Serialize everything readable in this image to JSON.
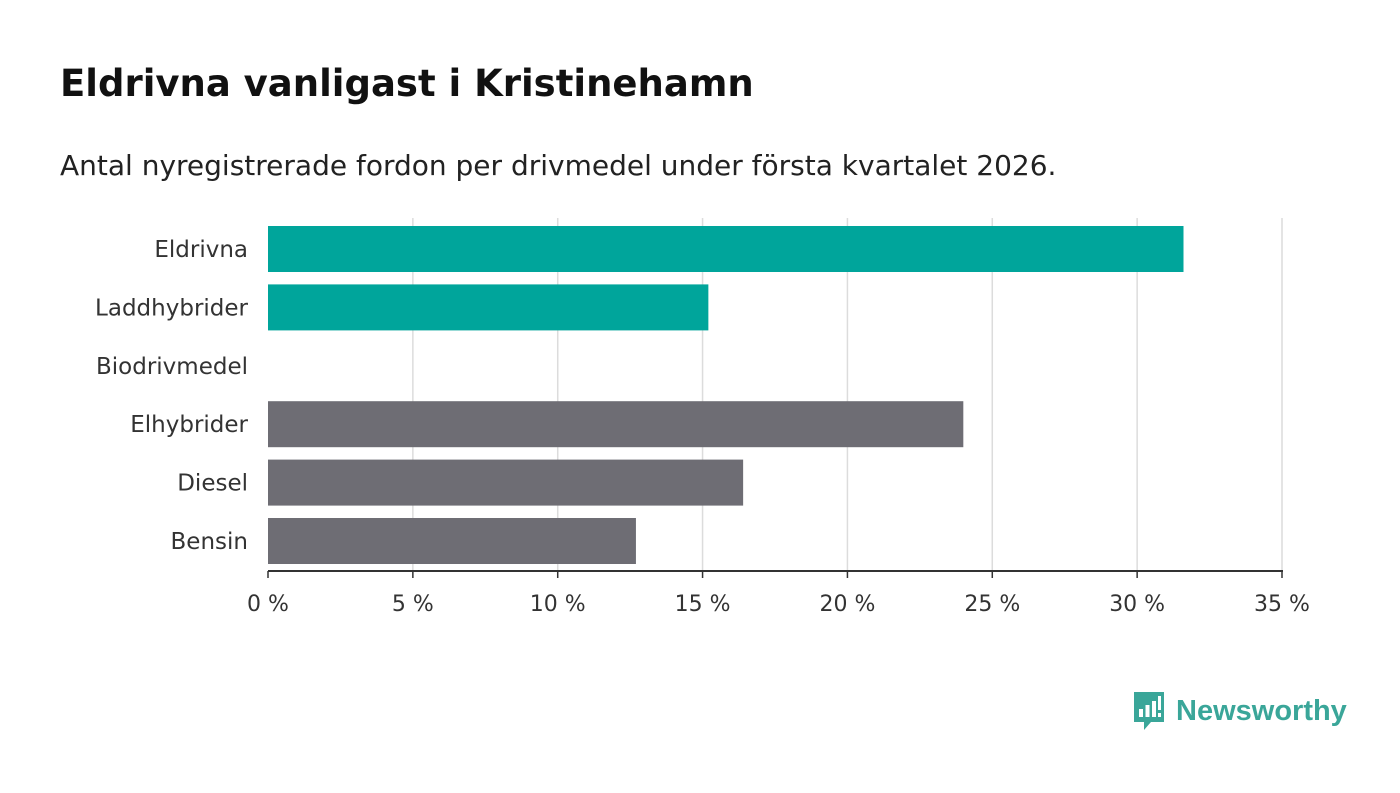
{
  "title": "Eldrivna vanligast i Kristinehamn",
  "subtitle": "Antal nyregistrerade fordon per drivmedel under första kvartalet 2026.",
  "brand": {
    "name": "Newsworthy",
    "icon": "newsworthy-logo-icon",
    "color": "#3aa699"
  },
  "chart_data": {
    "type": "bar",
    "orientation": "horizontal",
    "title": "Eldrivna vanligast i Kristinehamn",
    "subtitle": "Antal nyregistrerade fordon per drivmedel under första kvartalet 2026.",
    "xlabel": "",
    "ylabel": "",
    "categories": [
      "Eldrivna",
      "Laddhybrider",
      "Biodrivmedel",
      "Elhybrider",
      "Diesel",
      "Bensin"
    ],
    "values": [
      31.6,
      15.2,
      0,
      24.0,
      16.4,
      12.7
    ],
    "colors": [
      "#00a59b",
      "#00a59b",
      "#00a59b",
      "#6e6d74",
      "#6e6d74",
      "#6e6d74"
    ],
    "xlim": [
      0,
      35
    ],
    "xticks": [
      0,
      5,
      10,
      15,
      20,
      25,
      30,
      35
    ],
    "xtick_labels": [
      "0 %",
      "5 %",
      "10 %",
      "15 %",
      "20 %",
      "25 %",
      "30 %",
      "35 %"
    ],
    "grid": true,
    "legend": "none"
  }
}
